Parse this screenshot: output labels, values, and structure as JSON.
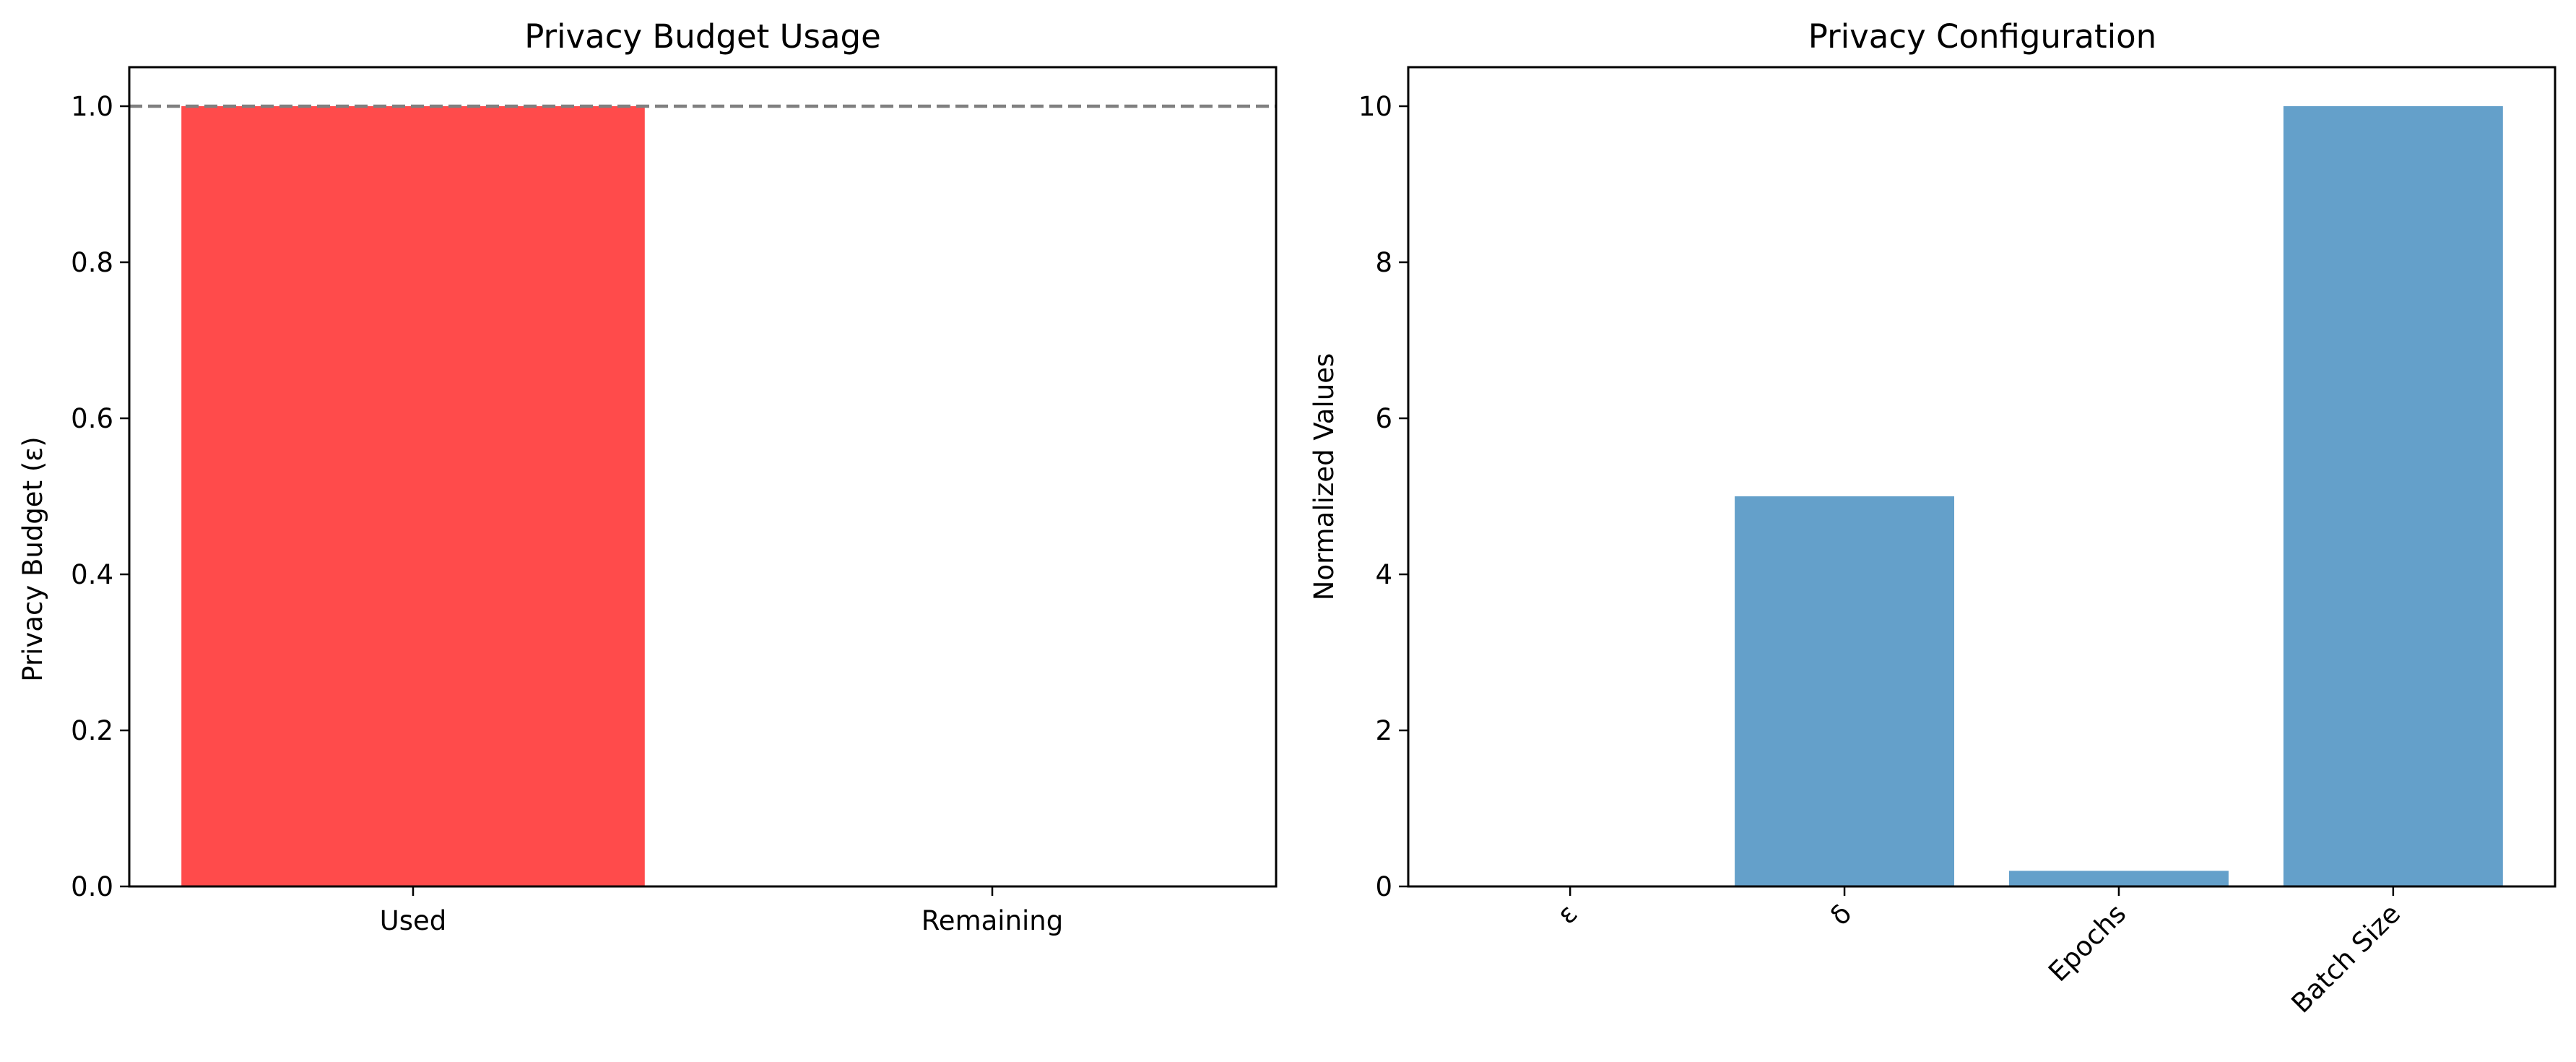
{
  "chart_data": [
    {
      "type": "bar",
      "title": "Privacy Budget Usage",
      "xlabel": "",
      "ylabel": "Privacy Budget (ε)",
      "categories": [
        "Used",
        "Remaining"
      ],
      "values": [
        1.0,
        0.0
      ],
      "bar_colors": [
        "#ff4b4b",
        "#ff4b4b"
      ],
      "ylim": [
        0,
        1.05
      ],
      "yticks": [
        "0.0",
        "0.2",
        "0.4",
        "0.6",
        "0.8",
        "1.0"
      ],
      "reference_line": {
        "y": 1.0,
        "style": "dashed",
        "color": "#808080"
      },
      "grid": false,
      "legend": "none"
    },
    {
      "type": "bar",
      "title": "Privacy Configuration",
      "xlabel": "",
      "ylabel": "Normalized Values",
      "categories": [
        "ε",
        "δ",
        "Epochs",
        "Batch Size"
      ],
      "values": [
        0.01,
        5.0,
        0.2,
        10.0
      ],
      "bar_color": "#64a0ca",
      "ylim": [
        0,
        10.5
      ],
      "yticks": [
        "0",
        "2",
        "4",
        "6",
        "8",
        "10"
      ],
      "xtick_rotation": 45,
      "grid": false,
      "legend": "none"
    }
  ]
}
